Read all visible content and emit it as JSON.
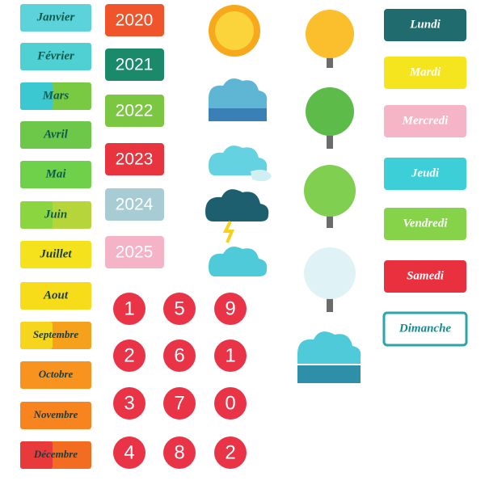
{
  "months": [
    "Janvier",
    "Février",
    "Mars",
    "Avril",
    "Mai",
    "Juin",
    "Juillet",
    "Aout",
    "Septembre",
    "Octobre",
    "Novembre",
    "Décembre"
  ],
  "years": [
    "2020",
    "2021",
    "2022",
    "2023",
    "2024",
    "2025"
  ],
  "numbers": [
    1,
    5,
    9,
    2,
    6,
    1,
    3,
    7,
    0,
    4,
    8,
    2
  ],
  "days": [
    "Lundi",
    "Mardi",
    "Mercredi",
    "Jeudi",
    "Vendredi",
    "Samedi",
    "Dimanche"
  ]
}
